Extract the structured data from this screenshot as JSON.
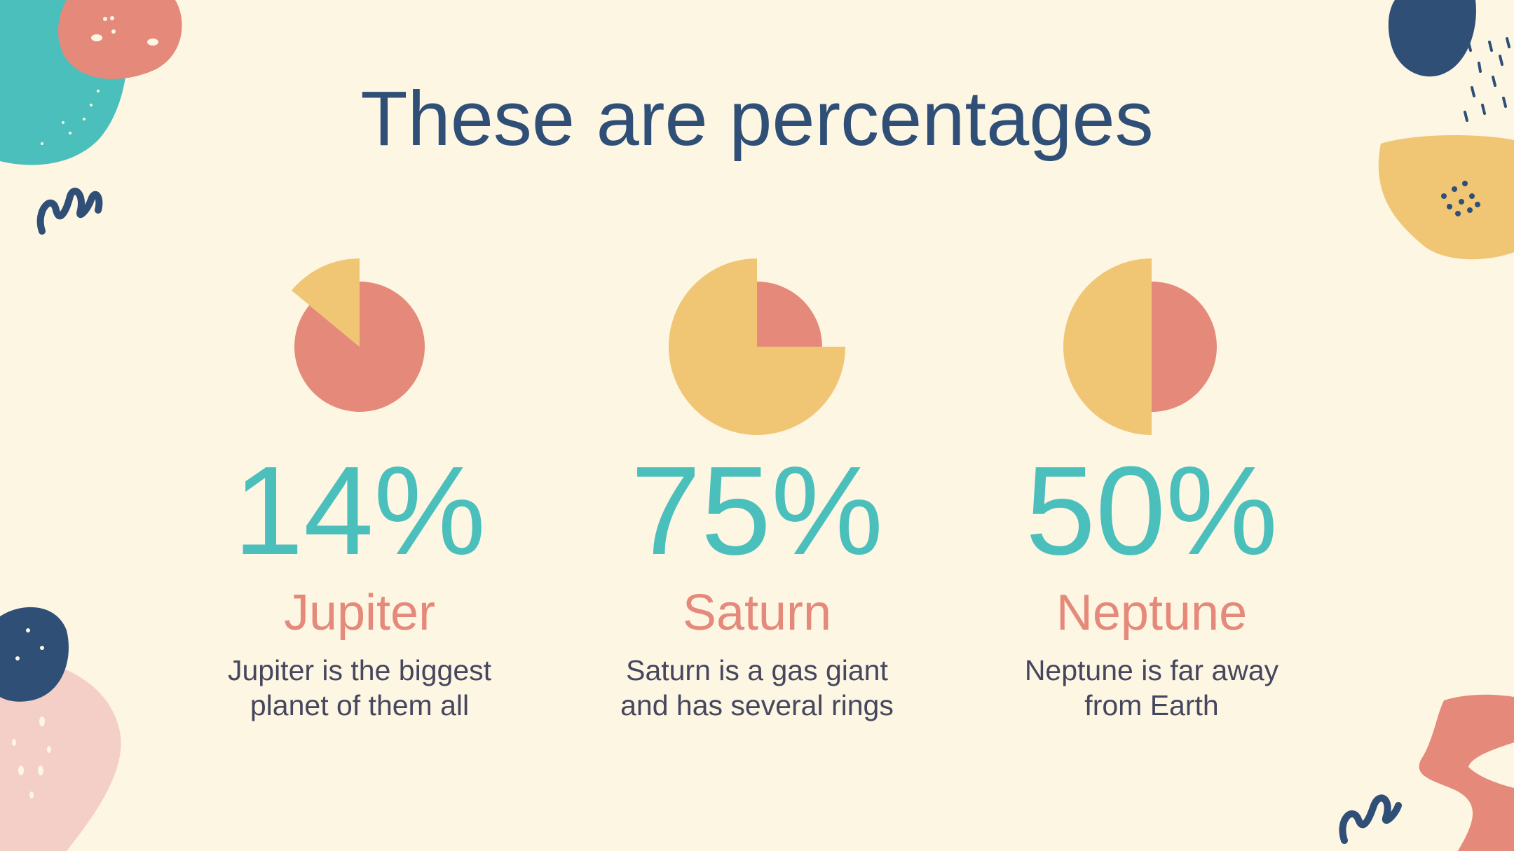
{
  "slide": {
    "title": "These are percentages"
  },
  "colors": {
    "background": "#fdf6e3",
    "title": "#2f4f76",
    "percent": "#4bbfbc",
    "name": "#e58a7b",
    "description": "#46465e",
    "pie_main": "#e58a7b",
    "pie_highlight": "#f0c674",
    "deco_teal": "#4bbfbc",
    "deco_navy": "#2f4f76",
    "deco_pink": "#f3cfc8",
    "deco_yellow": "#f0c674"
  },
  "chart_data": [
    {
      "type": "pie",
      "name": "Jupiter",
      "label": "14%",
      "value": 14,
      "description": [
        "Jupiter is the biggest",
        "planet of them all"
      ]
    },
    {
      "type": "pie",
      "name": "Saturn",
      "label": "75%",
      "value": 75,
      "description": [
        "Saturn is a gas giant",
        "and has several rings"
      ]
    },
    {
      "type": "pie",
      "name": "Neptune",
      "label": "50%",
      "value": 50,
      "description": [
        "Neptune is far away",
        "from Earth"
      ]
    }
  ]
}
